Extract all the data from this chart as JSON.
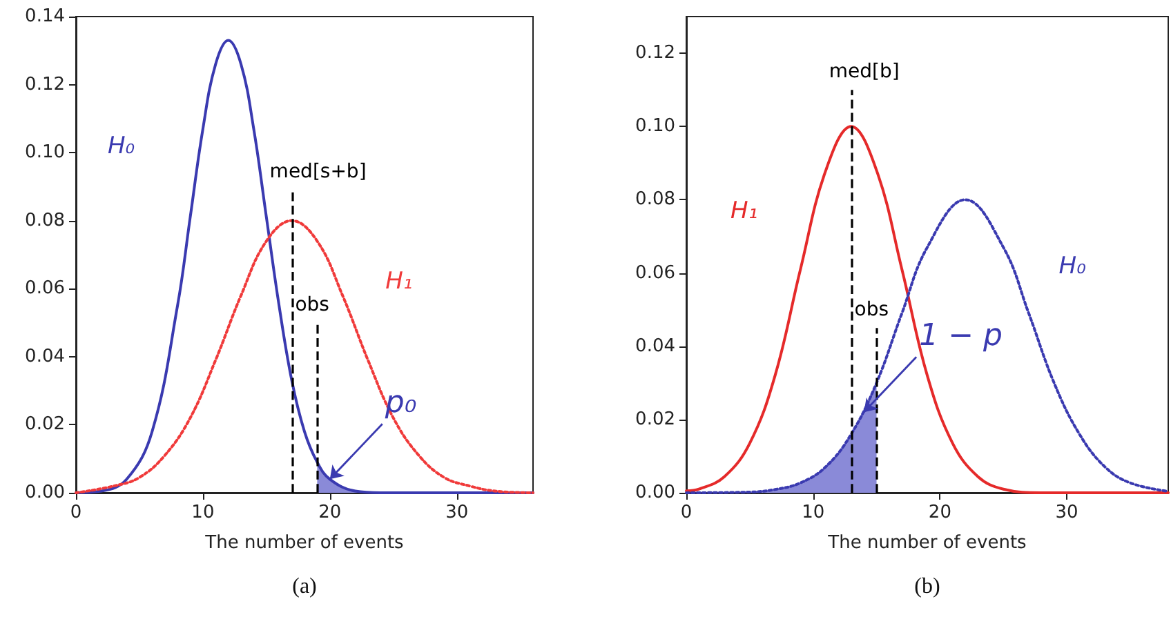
{
  "chart_data": [
    {
      "type": "line",
      "xlabel": "The number of events",
      "xlim": [
        0,
        36
      ],
      "xticks": [
        0,
        10,
        20,
        30
      ],
      "ylim": [
        0,
        0.14
      ],
      "yticks": [
        {
          "value": 0,
          "label": "0.00"
        },
        {
          "value": 0.02,
          "label": "0.02"
        },
        {
          "value": 0.04,
          "label": "0.04"
        },
        {
          "value": 0.06,
          "label": "0.06"
        },
        {
          "value": 0.08,
          "label": "0.08"
        },
        {
          "value": 0.1,
          "label": "0.10"
        },
        {
          "value": 0.12,
          "label": "0.12"
        },
        {
          "value": 0.14,
          "label": "0.14"
        }
      ],
      "series": [
        {
          "name": "H₀",
          "color": "#3a3ab0",
          "line_style": "solid",
          "x": [
            0,
            2,
            4,
            6,
            8,
            9,
            10,
            11,
            12,
            13,
            14,
            15,
            16,
            17,
            18,
            19,
            20,
            22,
            24,
            26,
            30,
            36
          ],
          "values": [
            0,
            0.0005,
            0.004,
            0.018,
            0.055,
            0.081,
            0.107,
            0.126,
            0.133,
            0.126,
            0.107,
            0.081,
            0.055,
            0.033,
            0.018,
            0.009,
            0.004,
            0.0005,
            0,
            0,
            0,
            0
          ]
        },
        {
          "name": "H₁",
          "color": "#f03a3a",
          "line_style": "dotted",
          "x": [
            0,
            3,
            5,
            7,
            9,
            11,
            13,
            15,
            17,
            19,
            21,
            23,
            25,
            27,
            29,
            31,
            33,
            36
          ],
          "values": [
            0,
            0.002,
            0.0045,
            0.011,
            0.022,
            0.039,
            0.058,
            0.074,
            0.08,
            0.074,
            0.058,
            0.039,
            0.022,
            0.011,
            0.0045,
            0.002,
            0.0005,
            0
          ]
        },
        {
          "type": "area",
          "color": "#8a8ad8",
          "x": [
            19,
            20,
            22,
            24
          ],
          "values": [
            0.009,
            0.004,
            0.0005,
            0
          ]
        }
      ],
      "ref_lines": [
        {
          "axis": "x",
          "value": 17,
          "color": "#000000",
          "line_style": "dashed"
        },
        {
          "axis": "x",
          "value": 19,
          "color": "#000000",
          "line_style": "dashed"
        }
      ],
      "annotations": [
        {
          "text": "med[s+b]",
          "x": 17,
          "y": 0.089
        },
        {
          "text": "obs",
          "x": 19,
          "y": 0.05
        },
        {
          "text": "p₀",
          "x": 20,
          "y": 0.004
        },
        "(a)"
      ],
      "legend": false,
      "grid": false,
      "marker": "none"
    },
    {
      "type": "line",
      "xlabel": "The number of events",
      "xlim": [
        0,
        38
      ],
      "xticks": [
        0,
        10,
        20,
        30
      ],
      "ylim": [
        0,
        0.13
      ],
      "yticks": [
        {
          "value": 0,
          "label": "0.00"
        },
        {
          "value": 0.02,
          "label": "0.02"
        },
        {
          "value": 0.04,
          "label": "0.04"
        },
        {
          "value": 0.06,
          "label": "0.06"
        },
        {
          "value": 0.08,
          "label": "0.08"
        },
        {
          "value": 0.1,
          "label": "0.10"
        },
        {
          "value": 0.12,
          "label": "0.12"
        }
      ],
      "series": [
        {
          "name": "H₁",
          "color": "#e52a2a",
          "line_style": "solid",
          "x": [
            0,
            1,
            3,
            5,
            7,
            9,
            11,
            13,
            15,
            17,
            19,
            21,
            23,
            25,
            28,
            38
          ],
          "values": [
            0.0005,
            0.001,
            0.0044,
            0.0135,
            0.032,
            0.061,
            0.088,
            0.1,
            0.088,
            0.061,
            0.032,
            0.0135,
            0.0044,
            0.001,
            0,
            0
          ]
        },
        {
          "name": "H₀",
          "color": "#3a3ab0",
          "line_style": "dotted",
          "x": [
            0,
            5,
            7,
            9,
            11,
            13,
            15,
            17,
            19,
            22,
            25,
            27,
            29,
            31,
            33,
            35,
            38
          ],
          "values": [
            0,
            0.0002,
            0.0009,
            0.0027,
            0.0071,
            0.016,
            0.03,
            0.049,
            0.067,
            0.08,
            0.067,
            0.049,
            0.03,
            0.016,
            0.0071,
            0.0027,
            0.0004
          ]
        },
        {
          "type": "area",
          "color": "#8a8ad8",
          "x": [
            0,
            5,
            7,
            9,
            11,
            13,
            15
          ],
          "values": [
            0,
            0.0002,
            0.0009,
            0.0027,
            0.0071,
            0.016,
            0.03
          ]
        }
      ],
      "ref_lines": [
        {
          "axis": "x",
          "value": 13,
          "color": "#000000",
          "line_style": "dashed"
        },
        {
          "axis": "x",
          "value": 15,
          "color": "#000000",
          "line_style": "dashed"
        }
      ],
      "annotations": [
        {
          "text": "med[b]",
          "x": 13,
          "y": 0.11
        },
        {
          "text": "obs",
          "x": 15,
          "y": 0.045
        },
        {
          "text": "1 − p",
          "x": 14,
          "y": 0.022
        },
        "(b)"
      ],
      "legend": false,
      "grid": false,
      "marker": "none"
    }
  ]
}
